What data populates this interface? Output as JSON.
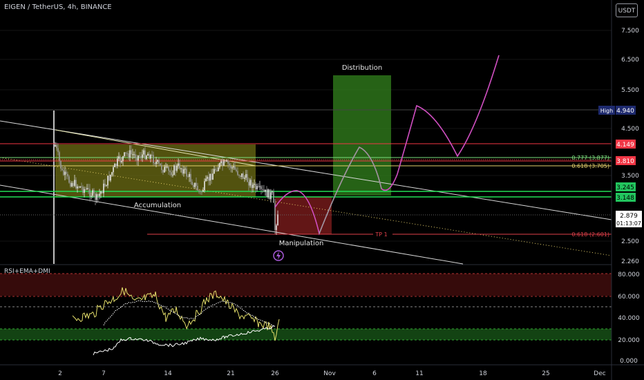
{
  "header": {
    "symbol_line": "EIGEN / TetherUS, 4h, BINANCE",
    "currency_button": "USDT"
  },
  "chart_data": {
    "type": "candlestick",
    "price_axis": {
      "ticks": [
        "7.500",
        "6.500",
        "5.500",
        "4.500",
        "3.500",
        "2.500",
        "2.260"
      ],
      "scale": "log"
    },
    "time_axis": {
      "ticks": [
        "2",
        "7",
        "14",
        "21",
        "26",
        "Nov",
        "6",
        "11",
        "18",
        "25",
        "Dec"
      ]
    },
    "price_labels": [
      {
        "text": "High",
        "value": "4.940",
        "color": "#1e2a6e"
      },
      {
        "text": "",
        "value": "4.149",
        "color": "#f23645"
      },
      {
        "text": "",
        "value": "3.810",
        "color": "#f23645"
      },
      {
        "text": "",
        "value": "3.245",
        "color": "#22c55e"
      },
      {
        "text": "",
        "value": "3.148",
        "color": "#22c55e"
      },
      {
        "text": "",
        "value": "2.879",
        "color": "#ffffff"
      },
      {
        "text": "",
        "value": "01:13:07",
        "color": "#ffffff"
      }
    ],
    "fib_levels": [
      {
        "label": "0.777 (3.877)",
        "color": "#7ee07e"
      },
      {
        "label": "0.618 (3.705)",
        "color": "#e6d06b"
      },
      {
        "label": "0.618 (2.601)",
        "color": "#e0404a"
      }
    ],
    "annotations": {
      "accumulation": "Accumulation",
      "manipulation": "Manipulation",
      "distribution": "Distribution",
      "tp1": "TP 1"
    },
    "indicator": {
      "name": "RSI+EMA+DMI",
      "ticks": [
        "80.000",
        "60.000",
        "40.000",
        "20.000",
        "0.000"
      ]
    }
  },
  "colors": {
    "accumulation_box": "#8a8a1e",
    "manipulation_box": "#7a1c1c",
    "distribution_box": "#2f7a1c",
    "projection": "#d14fc2"
  }
}
